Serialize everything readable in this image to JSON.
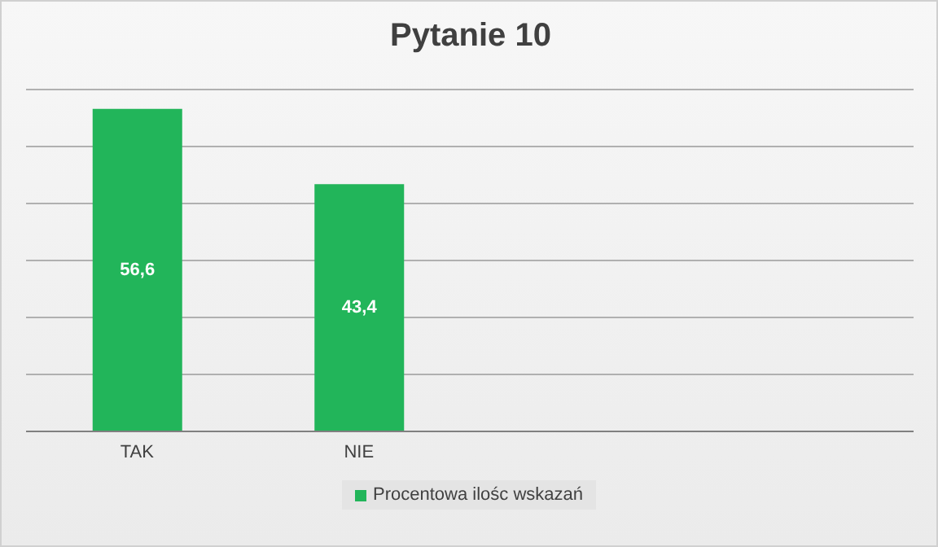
{
  "chart_data": {
    "type": "bar",
    "title": "Pytanie 10",
    "categories": [
      "TAK",
      "NIE",
      null,
      null
    ],
    "series": [
      {
        "name": "Procentowa ilośc wskazań",
        "color": "#22b55a",
        "values": [
          56.6,
          43.4,
          null,
          null
        ],
        "value_labels": [
          "56,6",
          "43,4",
          null,
          null
        ]
      }
    ],
    "ylim": [
      0,
      60
    ],
    "yticks": [
      {
        "value": 0,
        "label": null
      },
      {
        "value": 10,
        "label": null
      },
      {
        "value": 20,
        "label": null
      },
      {
        "value": 30,
        "label": null
      },
      {
        "value": 40,
        "label": null
      },
      {
        "value": 50,
        "label": null
      },
      {
        "value": 60,
        "label": null
      }
    ],
    "grid": "y",
    "tick_labels": "x",
    "legend": "bottom"
  }
}
